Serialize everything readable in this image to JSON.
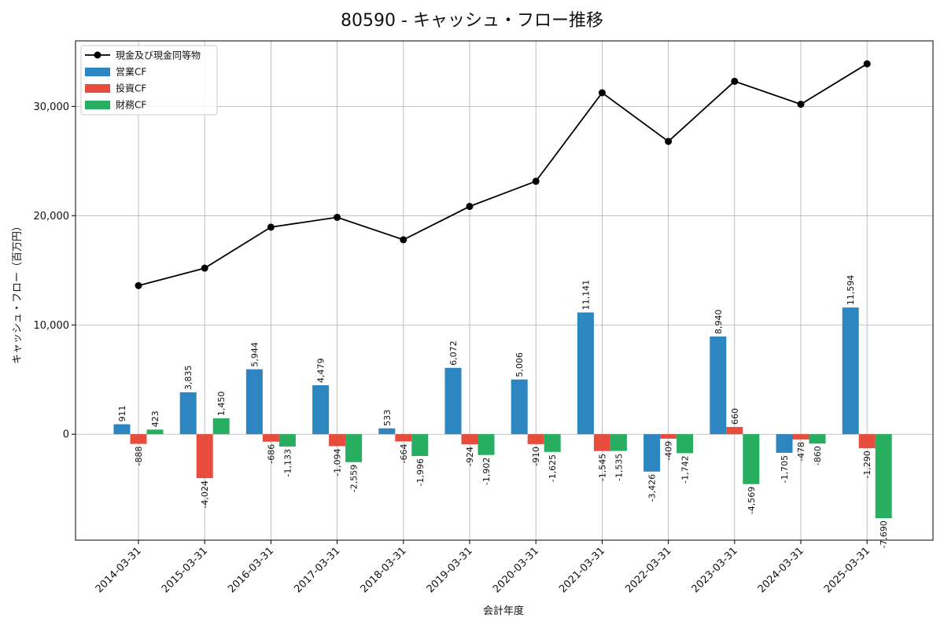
{
  "chart_data": {
    "type": "bar",
    "title": "80590 - キャッシュ・フロー推移",
    "xlabel": "会計年度",
    "ylabel": "キャッシュ・フロー（百万円）",
    "ylim": [
      -9700,
      36000
    ],
    "yticks": [
      0,
      10000,
      20000,
      30000
    ],
    "ytick_labels": [
      "0",
      "10,000",
      "20,000",
      "30,000"
    ],
    "grid": true,
    "legend_position": "top-left",
    "categories": [
      "2014-03-31",
      "2015-03-31",
      "2016-03-31",
      "2017-03-31",
      "2018-03-31",
      "2019-03-31",
      "2020-03-31",
      "2021-03-31",
      "2022-03-31",
      "2023-03-31",
      "2024-03-31",
      "2025-03-31"
    ],
    "series": [
      {
        "name": "営業CF",
        "kind": "bar",
        "color": "#2e86c1",
        "values": [
          911,
          3835,
          5944,
          4479,
          533,
          6072,
          5006,
          11141,
          -3426,
          8940,
          -1705,
          11594
        ],
        "labels": [
          "911",
          "3,835",
          "5,944",
          "4,479",
          "533",
          "6,072",
          "5,006",
          "11,141",
          "-3,426",
          "8,940",
          "-1,705",
          "11,594"
        ]
      },
      {
        "name": "投資CF",
        "kind": "bar",
        "color": "#e74c3c",
        "values": [
          -888,
          -4024,
          -686,
          -1094,
          -664,
          -924,
          -910,
          -1545,
          -409,
          660,
          -478,
          -1290
        ],
        "labels": [
          "-888",
          "-4,024",
          "-686",
          "-1,094",
          "-664",
          "-924",
          "-910",
          "-1,545",
          "-409",
          "660",
          "-478",
          "-1,290"
        ]
      },
      {
        "name": "財務CF",
        "kind": "bar",
        "color": "#27ae60",
        "values": [
          423,
          1450,
          -1133,
          -2559,
          -1996,
          -1902,
          -1625,
          -1535,
          -1742,
          -4569,
          -860,
          -7690
        ],
        "labels": [
          "423",
          "1,450",
          "-1,133",
          "-2,559",
          "-1,996",
          "-1,902",
          "-1,625",
          "-1,535",
          "-1,742",
          "-4,569",
          "-860",
          "-7,690"
        ]
      },
      {
        "name": "現金及び現金同等物",
        "kind": "line",
        "color": "#000000",
        "values": [
          13600,
          15200,
          18950,
          19850,
          17800,
          20850,
          23150,
          31250,
          26800,
          32300,
          30200,
          33900
        ]
      }
    ]
  }
}
